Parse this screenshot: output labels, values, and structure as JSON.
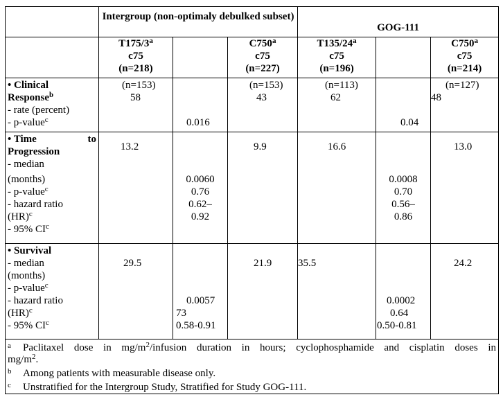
{
  "header": {
    "intergroup_title": "Intergroup (non-optimaly debulked subset)",
    "gog_title": "GOG-111",
    "col1": {
      "regimen": "T175/3",
      "sup": "a",
      "c": "c75",
      "n": "(n=218)"
    },
    "col3": {
      "regimen": "C750",
      "sup": "a",
      "c": "c75",
      "n": "(n=227)"
    },
    "col4": {
      "regimen": "T135/24",
      "sup": "a",
      "c": "c75",
      "n": "(n=196)"
    },
    "col6": {
      "regimen": "C750",
      "sup": "a",
      "c": "c75",
      "n": "(n=214)"
    }
  },
  "clinical": {
    "title_a": "Clinical",
    "title_b": "Response",
    "title_sup": "b",
    "bullet": "•",
    "rate_label": "- rate (percent)",
    "p_label": "- p-value",
    "p_sup": "c",
    "c1_n": "(n=153)",
    "c1_rate": "58",
    "c2_p": "0.016",
    "c3_n": "(n=153)",
    "c3_rate": "43",
    "c4_n": "(n=113)",
    "c4_rate": "62",
    "c5_p": "0.04",
    "c6_n": "(n=127)",
    "c6_rate": "48"
  },
  "ttp": {
    "bullet": "•",
    "title_a": "Time",
    "title_to": "to",
    "title_b": "Progression",
    "median_label": "- median",
    "months_label": "(months)",
    "p_label": "- p-value",
    "p_sup": "c",
    "hr_label": "- hazard ratio",
    "hr_label2": "(HR)",
    "hr_sup": "c",
    "ci_label": "- 95% CI",
    "ci_sup": "c",
    "c1": "13.2",
    "c3": "9.9",
    "c4": "16.6",
    "c6": "13.0",
    "c2_p": "0.0060",
    "c2_hr": "0.76",
    "c2_ci1": "0.62–",
    "c2_ci2": "0.92",
    "c5_p": "0.0008",
    "c5_hr": "0.70",
    "c5_ci1": "0.56–",
    "c5_ci2": "0.86"
  },
  "survival": {
    "bullet": "•",
    "title": "Survival",
    "median_label": "- median",
    "months_label": "(months)",
    "p_label": "- p-value",
    "p_sup": "c",
    "hr_label": "- hazard ratio",
    "hr_label2": "(HR)",
    "hr_sup": "c",
    "ci_label": "- 95% CI",
    "ci_sup": "c",
    "c1": "29.5",
    "c3": "21.9",
    "c4": "35.5",
    "c6": "24.2",
    "c2_p": "0.0057",
    "c2_hr": "73",
    "c2_ci": "0.58-0.91",
    "c5_p": "0.0002",
    "c5_hr": "0.64",
    "c5_ci": "0.50-0.81"
  },
  "footnotes": [
    {
      "key": "a",
      "text_a": "Paclitaxel dose in mg/m",
      "text_sup": "2",
      "text_b": "/infusion duration in hours; cyclophosphamide and cisplatin  doses in",
      "text_c": "mg/m",
      "text_sup2": "2",
      "text_d": "."
    },
    {
      "key": "b",
      "text": "Among patients with measurable disease only."
    },
    {
      "key": "c",
      "text": "Unstratified for the Intergroup Study, Stratified for Study GOG-111."
    }
  ]
}
